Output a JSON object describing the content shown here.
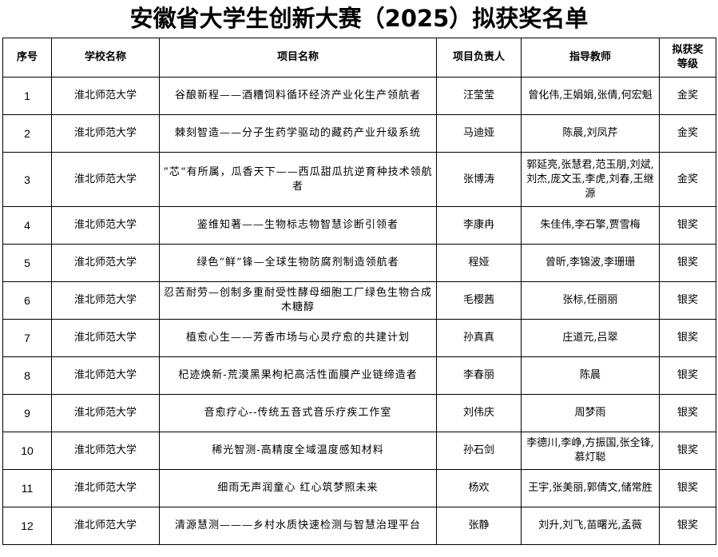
{
  "title": "安徽省大学生创新大赛（2025）拟获奖名单",
  "headers": [
    "序号",
    "学校名称",
    "项目名称",
    "项目负责人",
    "指导教师",
    "拟获奖等级"
  ],
  "rows": [
    {
      "no": "1",
      "school": "淮北师范大学",
      "project": "谷酿新程——酒糟饲料循环经济产业化生产领航者",
      "leader": "汪莹莹",
      "advisors": "曾化伟,王娟娟,张倩,何宏魁",
      "award": "金奖"
    },
    {
      "no": "2",
      "school": "淮北师范大学",
      "project": "棘刻智造——分子生药学驱动的藏药产业升级系统",
      "leader": "马迪娅",
      "advisors": "陈晨,刘凤芹",
      "award": "金奖"
    },
    {
      "no": "3",
      "school": "淮北师范大学",
      "project": "”芯“有所属，瓜香天下——西瓜甜瓜抗逆育种技术领航者",
      "leader": "张博涛",
      "advisors": "郭延亮,张慧君,范玉朋,刘斌,刘杰,庞文玉,李虎,刘春,王继源",
      "award": "金奖"
    },
    {
      "no": "4",
      "school": "淮北师范大学",
      "project": "鉴维知著——生物标志物智慧诊断引领者",
      "leader": "李康冉",
      "advisors": "朱佳伟,李石擎,贾雪梅",
      "award": "银奖"
    },
    {
      "no": "5",
      "school": "淮北师范大学",
      "project": "绿色“鲜”锋—全球生物防腐剂制造领航者",
      "leader": "程娅",
      "advisors": "曾昕,李锦波,李珊珊",
      "award": "银奖"
    },
    {
      "no": "6",
      "school": "淮北师范大学",
      "project": "忍苦耐劳—创制多重耐受性酵母细胞工厂绿色生物合成木糖醇",
      "leader": "毛樱茜",
      "advisors": "张标,任丽丽",
      "award": "银奖"
    },
    {
      "no": "7",
      "school": "淮北师范大学",
      "project": "植愈心生——芳香市场与心灵疗愈的共建计划",
      "leader": "孙真真",
      "advisors": "庄道元,吕翠",
      "award": "银奖"
    },
    {
      "no": "8",
      "school": "淮北师范大学",
      "project": "杞迹焕新-荒漠黑果枸杞高活性面膜产业链缔造者",
      "leader": "李春丽",
      "advisors": "陈晨",
      "award": "银奖"
    },
    {
      "no": "9",
      "school": "淮北师范大学",
      "project": "音愈疗心--传统五音式音乐疗疾工作室",
      "leader": "刘伟庆",
      "advisors": "周梦雨",
      "award": "银奖"
    },
    {
      "no": "10",
      "school": "淮北师范大学",
      "project": "稀光智测-高精度全域温度感知材料",
      "leader": "孙石剑",
      "advisors": "李德川,李峥,方振国,张全锋,慕灯聪",
      "award": "银奖"
    },
    {
      "no": "11",
      "school": "淮北师范大学",
      "project": "细雨无声润童心 红心筑梦照未来",
      "leader": "杨欢",
      "advisors": "王宇,张美丽,郭倩文,储常胜",
      "award": "银奖"
    },
    {
      "no": "12",
      "school": "淮北师范大学",
      "project": "清源慧测———乡村水质快速检测与智慧治理平台",
      "leader": "张静",
      "advisors": "刘升,刘飞,苗曙光,孟薇",
      "award": "银奖"
    }
  ]
}
